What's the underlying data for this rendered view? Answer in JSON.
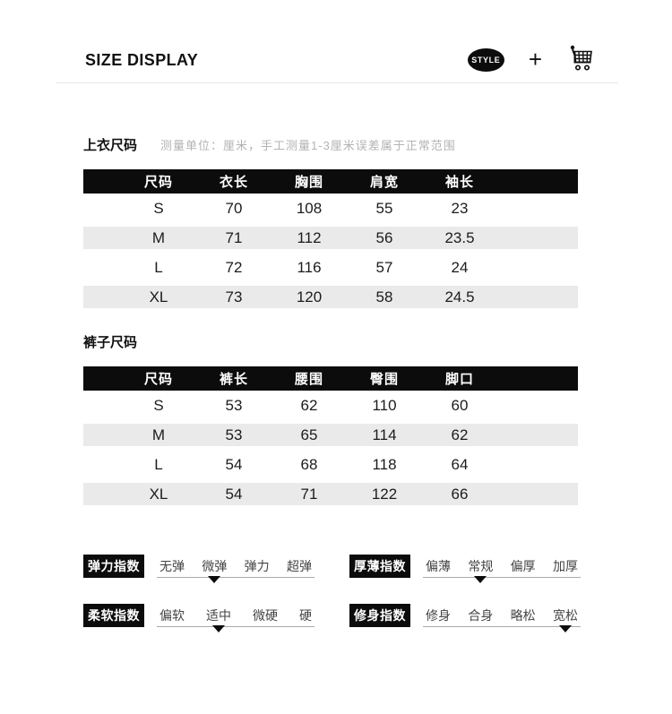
{
  "header": {
    "title": "SIZE DISPLAY",
    "badge_label": "STYLE",
    "plus_label": "+"
  },
  "measure_note": "测量单位：厘米，手工测量1-3厘米误差属于正常范围",
  "tables": [
    {
      "title": "上衣尺码",
      "columns": [
        "尺码",
        "衣长",
        "胸围",
        "肩宽",
        "袖长"
      ],
      "rows": [
        [
          "S",
          "70",
          "108",
          "55",
          "23"
        ],
        [
          "M",
          "71",
          "112",
          "56",
          "23.5"
        ],
        [
          "L",
          "72",
          "116",
          "57",
          "24"
        ],
        [
          "XL",
          "73",
          "120",
          "58",
          "24.5"
        ]
      ]
    },
    {
      "title": "裤子尺码",
      "columns": [
        "尺码",
        "裤长",
        "腰围",
        "臀围",
        "脚口"
      ],
      "rows": [
        [
          "S",
          "53",
          "62",
          "110",
          "60"
        ],
        [
          "M",
          "53",
          "65",
          "114",
          "62"
        ],
        [
          "L",
          "54",
          "68",
          "118",
          "64"
        ],
        [
          "XL",
          "54",
          "71",
          "122",
          "66"
        ]
      ]
    }
  ],
  "indicators": [
    {
      "label": "弹力指数",
      "options": [
        "无弹",
        "微弹",
        "弹力",
        "超弹"
      ],
      "selected_index": 1
    },
    {
      "label": "厚薄指数",
      "options": [
        "偏薄",
        "常规",
        "偏厚",
        "加厚"
      ],
      "selected_index": 1
    },
    {
      "label": "柔软指数",
      "options": [
        "偏软",
        "适中",
        "微硬",
        "硬"
      ],
      "selected_index": 1
    },
    {
      "label": "修身指数",
      "options": [
        "修身",
        "合身",
        "略松",
        "宽松"
      ],
      "selected_index": 3
    }
  ],
  "colors": {
    "accent_black": "#0c0c0c",
    "stripe_gray": "#eaeaea",
    "note_gray": "#b3b3b3",
    "underline_gray": "#aaaaaa"
  }
}
